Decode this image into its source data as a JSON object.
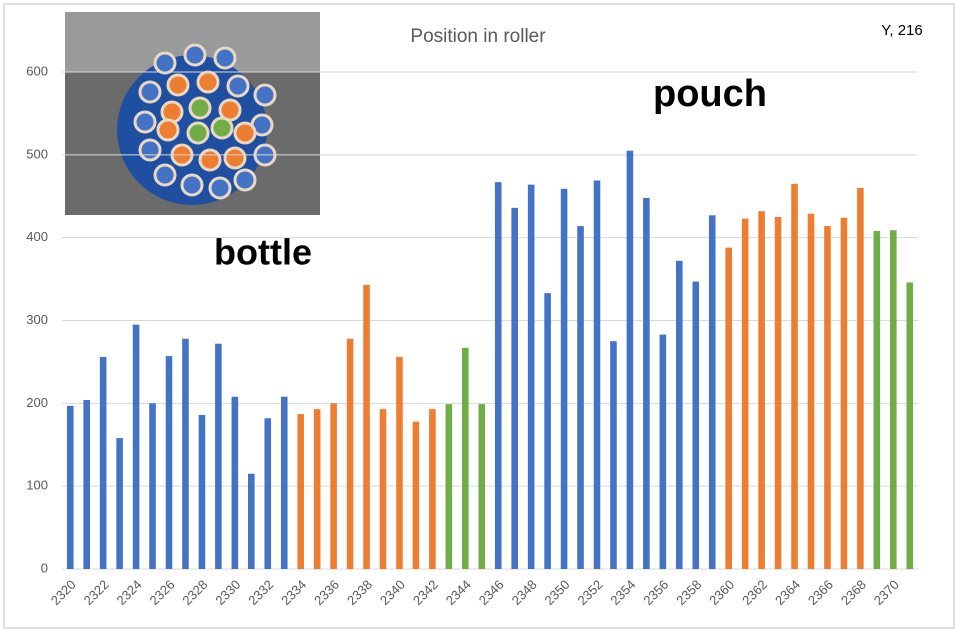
{
  "chart_data": {
    "type": "bar",
    "title": "Position in roller",
    "corner_label": "Y, 216",
    "annotations": [
      "bottle",
      "pouch"
    ],
    "categories": [
      2320,
      null,
      2322,
      null,
      2324,
      null,
      2326,
      null,
      2328,
      null,
      2330,
      null,
      2332,
      null,
      2334,
      null,
      2336,
      null,
      2338,
      null,
      2340,
      null,
      2342,
      null,
      2344,
      null,
      2346,
      null,
      2348,
      null,
      2350,
      null,
      2352,
      null,
      2354,
      null,
      2356,
      null,
      2358,
      null,
      2360,
      null,
      2362,
      null,
      2364,
      null,
      2366,
      null,
      2368,
      null,
      2370,
      null
    ],
    "values": [
      197,
      204,
      256,
      158,
      295,
      200,
      257,
      278,
      186,
      272,
      208,
      115,
      182,
      208,
      187,
      193,
      200,
      278,
      343,
      193,
      256,
      178,
      193,
      199,
      267,
      199,
      467,
      436,
      464,
      333,
      459,
      414,
      469,
      275,
      505,
      448,
      283,
      372,
      347,
      427,
      388,
      423,
      432,
      425,
      465,
      429,
      414,
      424,
      460,
      408,
      409,
      346
    ],
    "colors": [
      "#4472c4",
      "#4472c4",
      "#4472c4",
      "#4472c4",
      "#4472c4",
      "#4472c4",
      "#4472c4",
      "#4472c4",
      "#4472c4",
      "#4472c4",
      "#4472c4",
      "#4472c4",
      "#4472c4",
      "#4472c4",
      "#ed7d31",
      "#ed7d31",
      "#ed7d31",
      "#ed7d31",
      "#ed7d31",
      "#ed7d31",
      "#ed7d31",
      "#ed7d31",
      "#ed7d31",
      "#70ad47",
      "#70ad47",
      "#70ad47",
      "#4472c4",
      "#4472c4",
      "#4472c4",
      "#4472c4",
      "#4472c4",
      "#4472c4",
      "#4472c4",
      "#4472c4",
      "#4472c4",
      "#4472c4",
      "#4472c4",
      "#4472c4",
      "#4472c4",
      "#4472c4",
      "#ed7d31",
      "#ed7d31",
      "#ed7d31",
      "#ed7d31",
      "#ed7d31",
      "#ed7d31",
      "#ed7d31",
      "#ed7d31",
      "#ed7d31",
      "#70ad47",
      "#70ad47",
      "#70ad47"
    ],
    "ylim": [
      0,
      600
    ],
    "yticks": [
      0,
      100,
      200,
      300,
      400,
      500,
      600
    ],
    "grid": true
  }
}
